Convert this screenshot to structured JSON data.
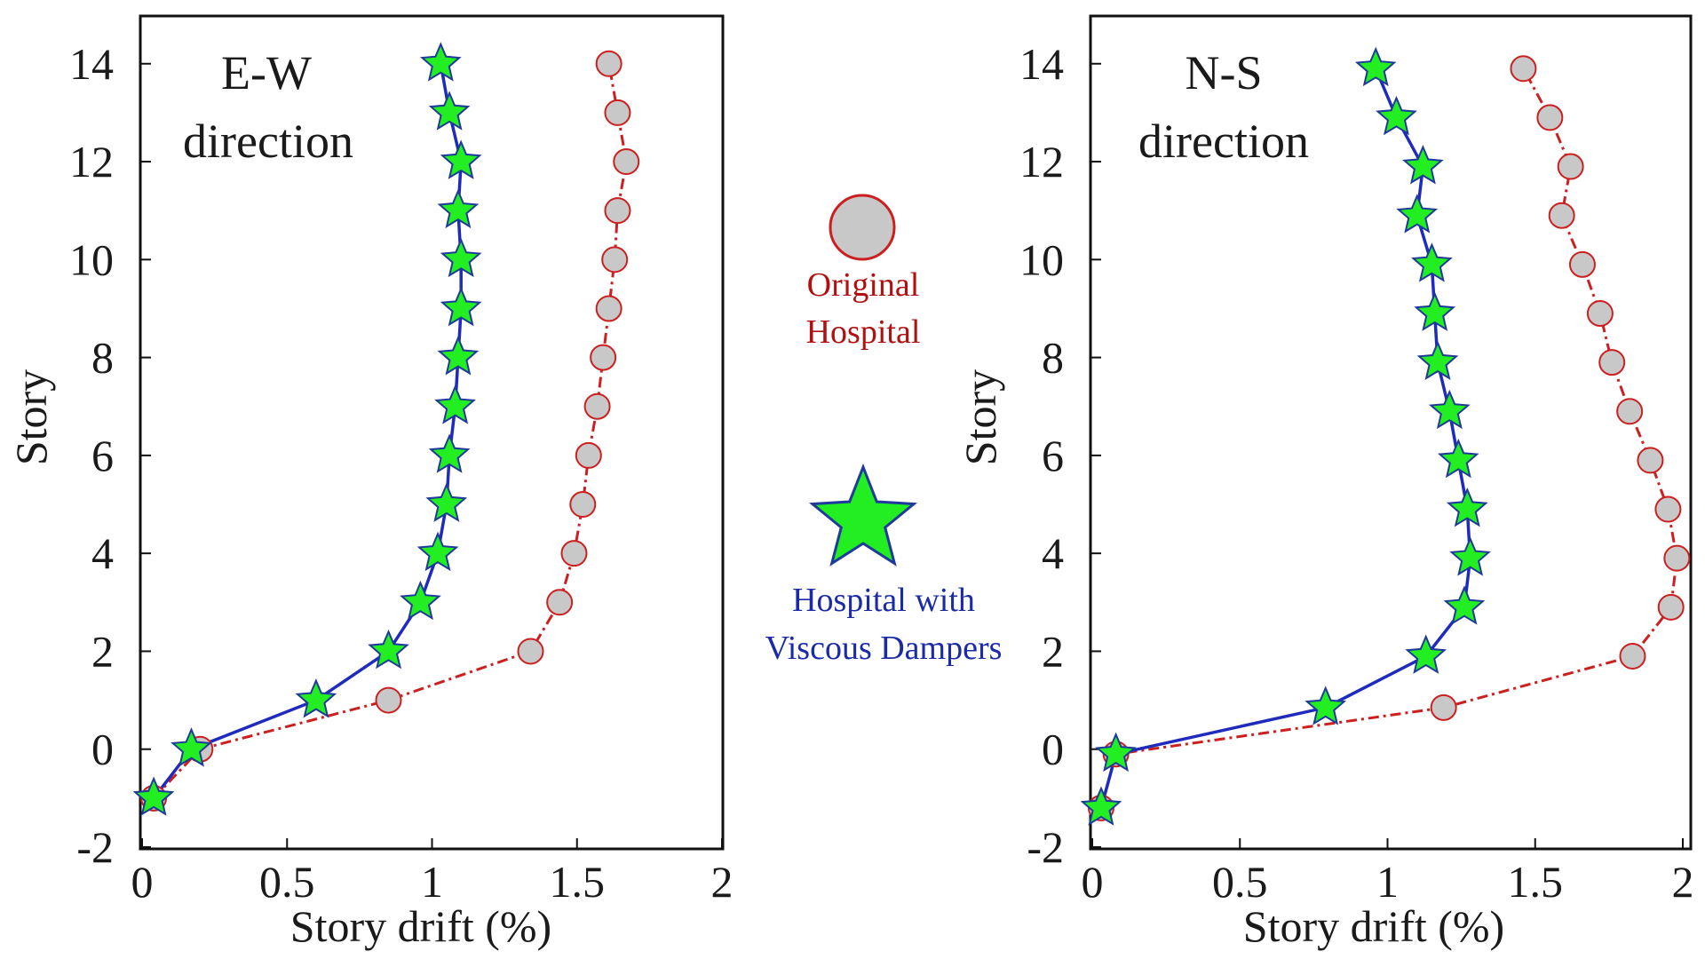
{
  "figure": {
    "legend": {
      "original_label_line1": "Original",
      "original_label_line2": "Hospital",
      "damped_label_line1": "Hospital with",
      "damped_label_line2": "Viscous Dampers"
    },
    "colors": {
      "original_line": "#cc1f1f",
      "original_marker_fill": "#c8c8c8",
      "original_marker_stroke": "#cc2020",
      "damped_line": "#1f2bbd",
      "damped_marker_fill": "#22ee22",
      "damped_marker_stroke": "#1f3a9a",
      "original_text": "#b01010",
      "damped_text": "#1a2aa8"
    }
  },
  "chart_data": [
    {
      "type": "line",
      "id": "ew",
      "direction_line1": "E-W",
      "direction_line2": "direction",
      "xlabel": "Story drift (%)",
      "ylabel": "Story",
      "xlim": [
        0,
        2
      ],
      "ylim": [
        -2,
        15
      ],
      "xticks": [
        0,
        0.5,
        1,
        1.5,
        2
      ],
      "xtick_labels": [
        "0",
        "0.5",
        "1",
        "1.5",
        "2"
      ],
      "yticks": [
        -2,
        0,
        2,
        4,
        6,
        8,
        10,
        12,
        14
      ],
      "ytick_labels": [
        "-2",
        "0",
        "2",
        "4",
        "6",
        "8",
        "10",
        "12",
        "14"
      ],
      "series": [
        {
          "name": "Original Hospital",
          "style": "original",
          "points": [
            [
              0.04,
              -1
            ],
            [
              0.2,
              0
            ],
            [
              0.85,
              1
            ],
            [
              1.34,
              2
            ],
            [
              1.44,
              3
            ],
            [
              1.49,
              4
            ],
            [
              1.52,
              5
            ],
            [
              1.54,
              6
            ],
            [
              1.57,
              7
            ],
            [
              1.59,
              8
            ],
            [
              1.61,
              9
            ],
            [
              1.63,
              10
            ],
            [
              1.64,
              11
            ],
            [
              1.67,
              12
            ],
            [
              1.64,
              13
            ],
            [
              1.61,
              14
            ]
          ]
        },
        {
          "name": "Hospital with Viscous Dampers",
          "style": "damped",
          "points": [
            [
              0.04,
              -1
            ],
            [
              0.17,
              0
            ],
            [
              0.6,
              1
            ],
            [
              0.85,
              2
            ],
            [
              0.96,
              3
            ],
            [
              1.02,
              4
            ],
            [
              1.05,
              5
            ],
            [
              1.06,
              6
            ],
            [
              1.08,
              7
            ],
            [
              1.09,
              8
            ],
            [
              1.1,
              9
            ],
            [
              1.1,
              10
            ],
            [
              1.09,
              11
            ],
            [
              1.1,
              12
            ],
            [
              1.06,
              13
            ],
            [
              1.03,
              14
            ]
          ]
        }
      ]
    },
    {
      "type": "line",
      "id": "ns",
      "direction_line1": "N-S",
      "direction_line2": "direction",
      "xlabel": "Story drift (%)",
      "ylabel": "Story",
      "xlim": [
        0,
        2
      ],
      "ylim": [
        -2,
        15
      ],
      "xticks": [
        0,
        0.5,
        1,
        1.5,
        2
      ],
      "xtick_labels": [
        "0",
        "0.5",
        "1",
        "1.5",
        "2"
      ],
      "yticks": [
        -2,
        0,
        2,
        4,
        6,
        8,
        10,
        12,
        14
      ],
      "ytick_labels": [
        "-2",
        "0",
        "2",
        "4",
        "6",
        "8",
        "10",
        "12",
        "14"
      ],
      "series": [
        {
          "name": "Original Hospital",
          "style": "original",
          "points": [
            [
              0.03,
              -1.2
            ],
            [
              0.08,
              -0.1
            ],
            [
              1.19,
              0.85
            ],
            [
              1.83,
              1.9
            ],
            [
              1.96,
              2.9
            ],
            [
              1.98,
              3.9
            ],
            [
              1.95,
              4.9
            ],
            [
              1.89,
              5.9
            ],
            [
              1.82,
              6.9
            ],
            [
              1.76,
              7.9
            ],
            [
              1.72,
              8.9
            ],
            [
              1.66,
              9.9
            ],
            [
              1.59,
              10.9
            ],
            [
              1.62,
              11.9
            ],
            [
              1.55,
              12.9
            ],
            [
              1.46,
              13.9
            ]
          ]
        },
        {
          "name": "Hospital with Viscous Dampers",
          "style": "damped",
          "points": [
            [
              0.03,
              -1.2
            ],
            [
              0.08,
              -0.1
            ],
            [
              0.79,
              0.85
            ],
            [
              1.13,
              1.9
            ],
            [
              1.26,
              2.9
            ],
            [
              1.28,
              3.9
            ],
            [
              1.27,
              4.9
            ],
            [
              1.24,
              5.9
            ],
            [
              1.21,
              6.9
            ],
            [
              1.17,
              7.9
            ],
            [
              1.16,
              8.9
            ],
            [
              1.15,
              9.9
            ],
            [
              1.1,
              10.9
            ],
            [
              1.12,
              11.9
            ],
            [
              1.03,
              12.9
            ],
            [
              0.96,
              13.9
            ]
          ]
        }
      ]
    }
  ]
}
